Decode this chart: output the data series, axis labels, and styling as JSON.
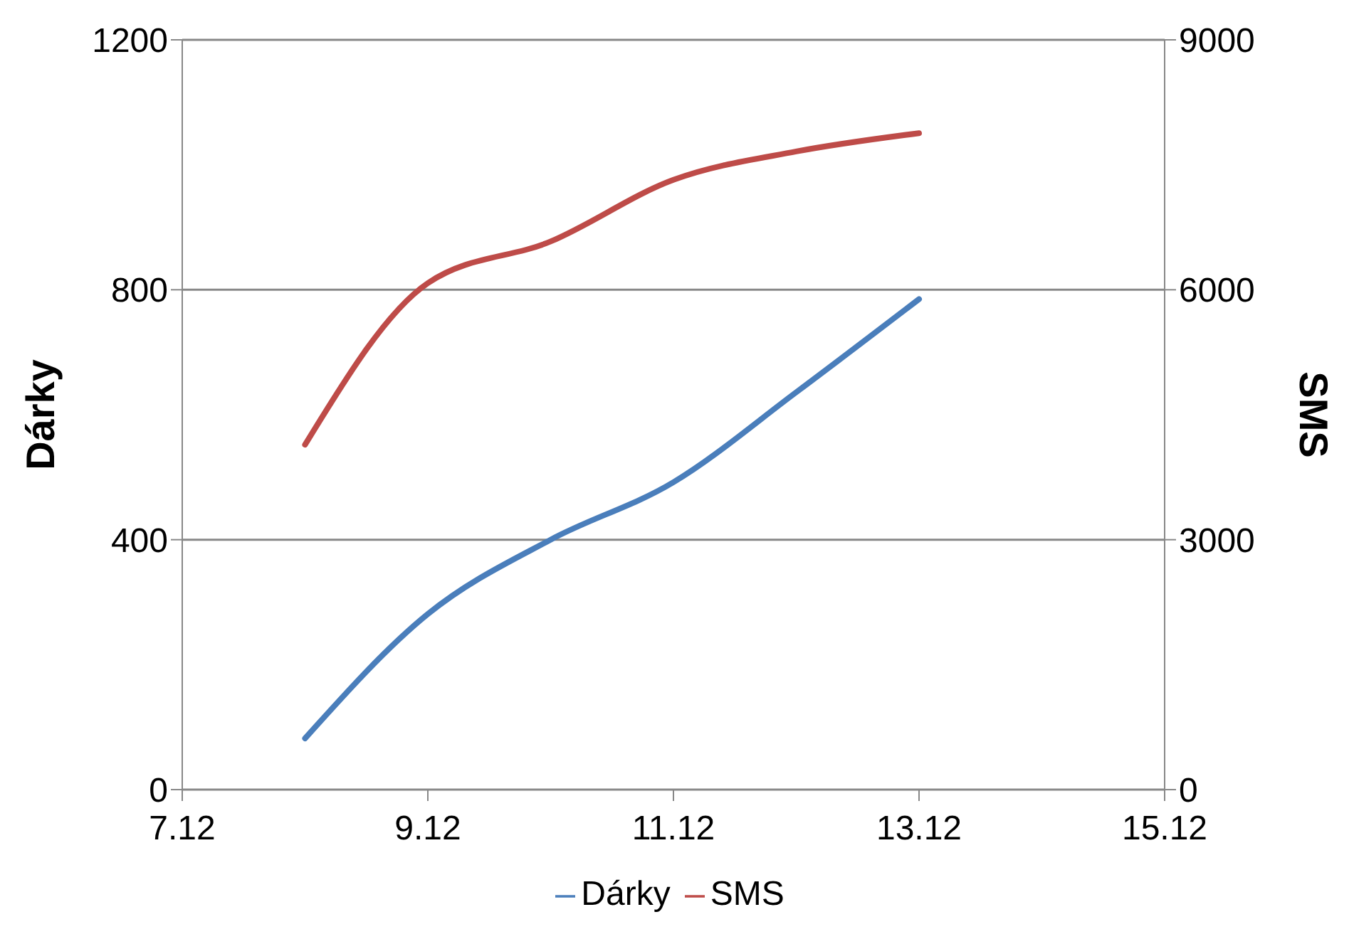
{
  "chart_data": {
    "type": "line",
    "ylabel": "Dárky",
    "y2label": "SMS",
    "x": [
      "--12-08",
      "--12-09",
      "--12-10",
      "--12-11",
      "--12-12",
      "--12-13"
    ],
    "series": [
      {
        "name": "Dárky",
        "color": "#4a7ebb",
        "values": [
          82,
          281,
          400,
          492,
          636,
          785
        ]
      },
      {
        "name": "SMS",
        "color": "#be4b48",
        "axis": "y2",
        "values": [
          4140,
          6080,
          6580,
          7320,
          7660,
          7880
        ]
      }
    ],
    "xlim": [
      "--12-07",
      "--12-15"
    ],
    "xticks": [
      {
        "value": "--12-07",
        "label": "7.12"
      },
      {
        "value": "--12-09",
        "label": "9.12"
      },
      {
        "value": "--12-11",
        "label": "11.12"
      },
      {
        "value": "--12-13",
        "label": "13.12"
      },
      {
        "value": "--12-15",
        "label": "15.12"
      }
    ],
    "ylim": [
      0,
      1200
    ],
    "yticks": [
      0,
      400,
      800,
      1200
    ],
    "y2lim": [
      0,
      9000
    ],
    "y2ticks": [
      0,
      3000,
      6000,
      9000
    ],
    "grid": "y",
    "legend": "bottom",
    "marker": "none",
    "line_style": "solid"
  }
}
